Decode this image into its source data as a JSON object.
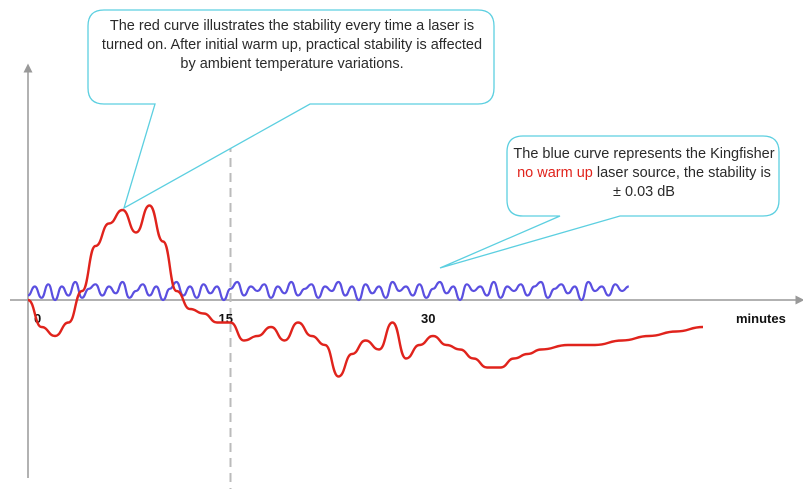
{
  "chart_data": {
    "type": "line",
    "title": "",
    "xlabel": "minutes",
    "ylabel": "",
    "x_ticks": [
      {
        "value": 0,
        "label": "0"
      },
      {
        "value": 15,
        "label": "15"
      },
      {
        "value": 30,
        "label": "30"
      }
    ],
    "xlim": [
      0,
      52
    ],
    "reference_line_x": 15,
    "grid": false,
    "series": [
      {
        "color": "#5a4fe0",
        "x": [
          0,
          0.5,
          1,
          1.5,
          2,
          2.5,
          3,
          3.5,
          4,
          4.5,
          5,
          5.5,
          6,
          6.5,
          7,
          7.5,
          8,
          8.5,
          9,
          9.5,
          10,
          10.5,
          11,
          11.5,
          12,
          12.5,
          13,
          13.5,
          14,
          14.5,
          15,
          15.5,
          16,
          16.5,
          17,
          17.5,
          18,
          18.5,
          19,
          19.5,
          20,
          20.5,
          21,
          21.5,
          22,
          22.5,
          23,
          23.5,
          24,
          24.5,
          25,
          25.5,
          26,
          26.5,
          27,
          27.5,
          28,
          28.5,
          29,
          29.5,
          30,
          30.5,
          31,
          31.5,
          32,
          32.5,
          33,
          33.5,
          34,
          34.5,
          35,
          35.5,
          36,
          36.5,
          37,
          37.5,
          38,
          38.5,
          39,
          39.5,
          40,
          40.5,
          41,
          41.5,
          42,
          42.5,
          43,
          43.5,
          44,
          44.5
        ],
        "values": [
          0.01,
          0.03,
          0.005,
          0.035,
          0.0,
          0.03,
          0.01,
          0.04,
          0.005,
          0.025,
          0.035,
          0.01,
          0.03,
          0.015,
          0.04,
          0.005,
          0.02,
          0.035,
          0.01,
          0.03,
          0.0,
          0.025,
          0.04,
          0.01,
          0.03,
          0.005,
          0.035,
          0.015,
          0.03,
          0.0,
          0.025,
          0.04,
          0.01,
          0.03,
          0.02,
          0.035,
          0.005,
          0.03,
          0.015,
          0.04,
          0.01,
          0.025,
          0.035,
          0.005,
          0.03,
          0.02,
          0.04,
          0.01,
          0.03,
          0.0,
          0.035,
          0.015,
          0.03,
          0.005,
          0.04,
          0.02,
          0.03,
          0.01,
          0.035,
          0.005,
          0.025,
          0.04,
          0.015,
          0.03,
          0.0,
          0.035,
          0.02,
          0.03,
          0.01,
          0.04,
          0.005,
          0.03,
          0.02,
          0.035,
          0.01,
          0.03,
          0.04,
          0.005,
          0.025,
          0.035,
          0.015,
          0.03,
          0.0,
          0.04,
          0.02,
          0.03,
          0.01,
          0.035,
          0.02,
          0.03
        ]
      },
      {
        "color": "#e0231c",
        "x": [
          0,
          1,
          2,
          3,
          4,
          5,
          6,
          7,
          8,
          9,
          10,
          11,
          12,
          13,
          14,
          15,
          16,
          17,
          18,
          19,
          20,
          21,
          22,
          23,
          24,
          25,
          26,
          27,
          28,
          29,
          30,
          31,
          32,
          33,
          34,
          35,
          36,
          37,
          38,
          40,
          42,
          44,
          46,
          48,
          50
        ],
        "values": [
          0.0,
          -0.06,
          -0.08,
          -0.05,
          0.02,
          0.12,
          0.17,
          0.2,
          0.15,
          0.21,
          0.13,
          0.02,
          -0.02,
          -0.03,
          -0.05,
          -0.05,
          -0.09,
          -0.08,
          -0.06,
          -0.09,
          -0.05,
          -0.08,
          -0.1,
          -0.17,
          -0.12,
          -0.09,
          -0.11,
          -0.05,
          -0.13,
          -0.1,
          -0.08,
          -0.1,
          -0.11,
          -0.13,
          -0.15,
          -0.15,
          -0.13,
          -0.12,
          -0.11,
          -0.1,
          -0.1,
          -0.09,
          -0.08,
          -0.07,
          -0.06
        ]
      }
    ],
    "annotations": [
      {
        "id": "red",
        "text": "The red curve illustrates the stability every time a laser is turned on. After initial warm up, practical stability is affected by ambient temperature variations."
      },
      {
        "id": "blue",
        "text_before": "The blue curve represents the Kingfisher ",
        "text_highlight": "no warm up",
        "text_after": " laser source, the stability is ± 0.03 dB"
      }
    ]
  }
}
